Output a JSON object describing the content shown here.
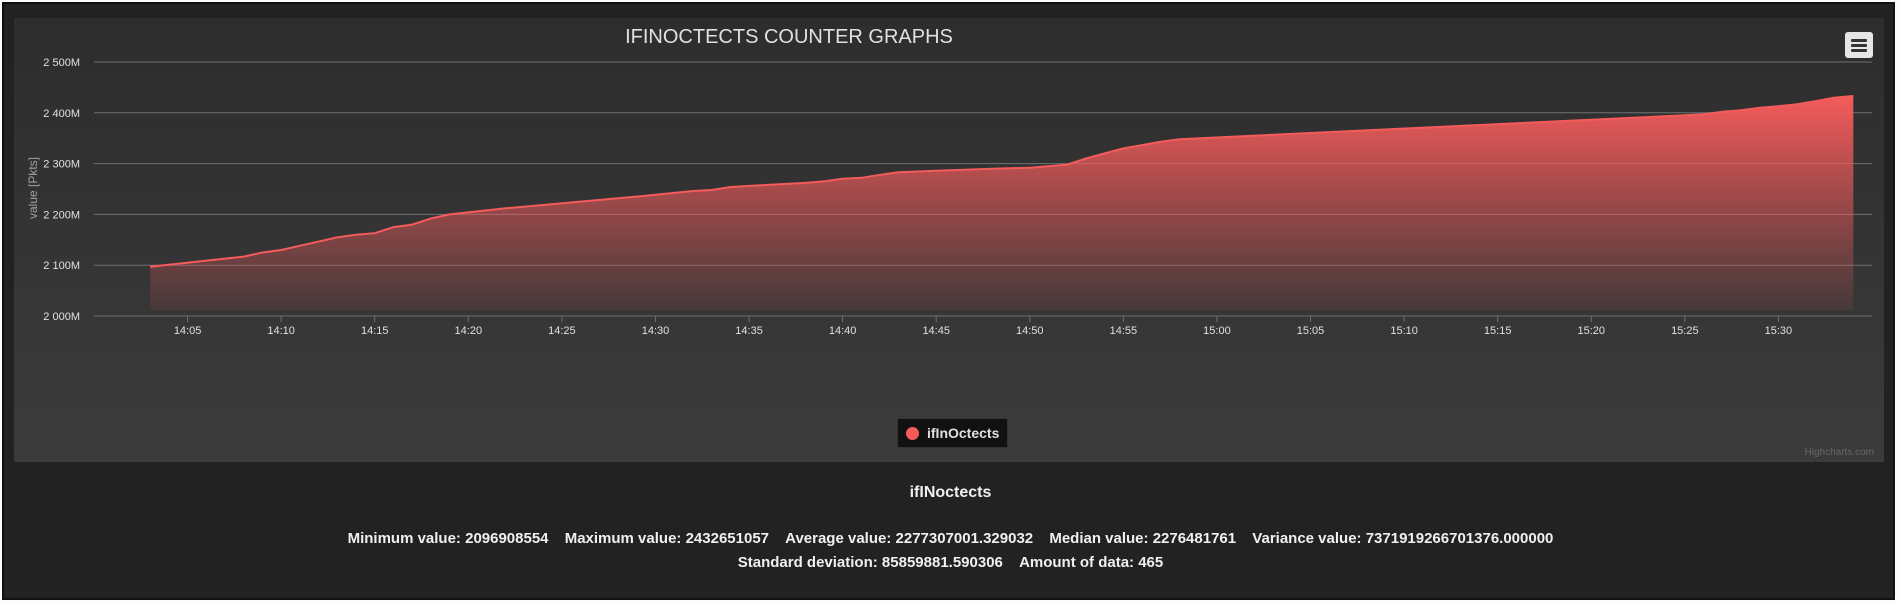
{
  "colors": {
    "series": "#f45b5b",
    "grid": "#707073",
    "axis_text": "#e0e0e3"
  },
  "menu_icon": "hamburger-menu-icon",
  "credits": "Highcharts.com",
  "chart_data": {
    "type": "area",
    "title": "IFINOCTECTS COUNTER GRAPHS",
    "ylabel": "value [Pkts]",
    "ylim": [
      2000,
      2500
    ],
    "yticks": [
      "2 000M",
      "2 100M",
      "2 200M",
      "2 300M",
      "2 400M",
      "2 500M"
    ],
    "yunit": "M",
    "xlim": [
      "14:00",
      "15:35"
    ],
    "xticks": [
      "14:05",
      "14:10",
      "14:15",
      "14:20",
      "14:25",
      "14:30",
      "14:35",
      "14:40",
      "14:45",
      "14:50",
      "14:55",
      "15:00",
      "15:05",
      "15:10",
      "15:15",
      "15:20",
      "15:25",
      "15:30"
    ],
    "legend": "top-center-below-plot",
    "grid": true,
    "series": [
      {
        "name": "ifInOctects",
        "points": [
          [
            "14:03",
            2097
          ],
          [
            "14:08",
            2117
          ],
          [
            "14:09",
            2125
          ],
          [
            "14:10",
            2130
          ],
          [
            "14:13",
            2155
          ],
          [
            "14:14",
            2160
          ],
          [
            "14:15",
            2163
          ],
          [
            "14:16",
            2175
          ],
          [
            "14:17",
            2180
          ],
          [
            "14:18",
            2192
          ],
          [
            "14:19",
            2200
          ],
          [
            "14:22",
            2212
          ],
          [
            "14:29",
            2235
          ],
          [
            "14:32",
            2246
          ],
          [
            "14:33",
            2248
          ],
          [
            "14:34",
            2254
          ],
          [
            "14:36",
            2258
          ],
          [
            "14:38",
            2262
          ],
          [
            "14:39",
            2265
          ],
          [
            "14:40",
            2270
          ],
          [
            "14:41",
            2272
          ],
          [
            "14:42",
            2278
          ],
          [
            "14:43",
            2283
          ],
          [
            "14:45",
            2286
          ],
          [
            "14:48",
            2290
          ],
          [
            "14:50",
            2292
          ],
          [
            "14:52",
            2298
          ],
          [
            "14:53",
            2310
          ],
          [
            "14:54",
            2320
          ],
          [
            "14:55",
            2330
          ],
          [
            "14:57",
            2343
          ],
          [
            "14:58",
            2348
          ],
          [
            "15:25",
            2395
          ],
          [
            "15:26",
            2397
          ],
          [
            "15:27",
            2402
          ],
          [
            "15:28",
            2405
          ],
          [
            "15:29",
            2410
          ],
          [
            "15:30",
            2413
          ],
          [
            "15:31",
            2417
          ],
          [
            "15:32",
            2423
          ],
          [
            "15:33",
            2430
          ],
          [
            "15:34",
            2433
          ]
        ]
      }
    ]
  },
  "stats": {
    "title": "ifINoctects",
    "min": "Minimum value: 2096908554",
    "max": "Maximum value: 2432651057",
    "avg": "Average value: 2277307001.329032",
    "median": "Median value: 2276481761",
    "variance": "Variance value: 7371919266701376.000000",
    "std": "Standard deviation: 85859881.590306",
    "count": "Amount of data: 465"
  }
}
